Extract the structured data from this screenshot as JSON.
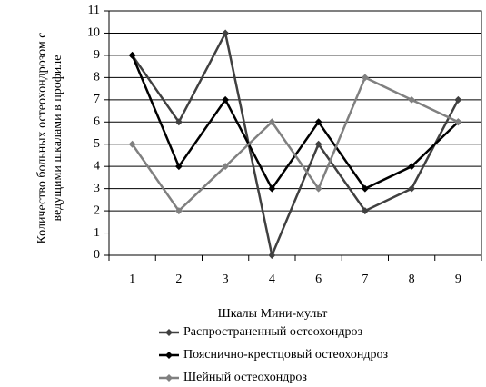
{
  "chart_data": {
    "type": "line",
    "x_label": "Шкалы Мини-мульт",
    "y_label": "Количество больных остеохондрозом с ведущими шкалами в профиле",
    "categories": [
      "1",
      "2",
      "3",
      "4",
      "6",
      "7",
      "8",
      "9"
    ],
    "series": [
      {
        "name": "Распространенный остеохондроз",
        "color": "#404040",
        "values": [
          9,
          6,
          10,
          0,
          5,
          2,
          3,
          7
        ]
      },
      {
        "name": "Пояснично-крестцовый остеохондроз",
        "color": "#000000",
        "values": [
          9,
          4,
          7,
          3,
          6,
          3,
          4,
          6
        ]
      },
      {
        "name": "Шейный остеохондроз",
        "color": "#808080",
        "values": [
          5,
          2,
          4,
          6,
          3,
          8,
          7,
          6
        ]
      }
    ],
    "ylim": [
      0,
      11
    ],
    "yticks": [
      0,
      1,
      2,
      3,
      4,
      5,
      6,
      7,
      8,
      9,
      10,
      11
    ],
    "grid": true,
    "legend": "bottom"
  }
}
